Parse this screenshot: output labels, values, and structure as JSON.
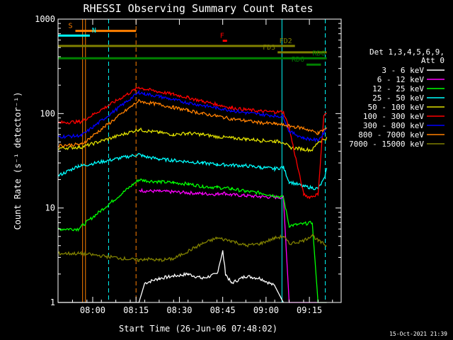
{
  "chart_data": {
    "type": "line",
    "title": "RHESSI Observing Summary Count Rates",
    "xlabel": "Start Time (26-Jun-06 07:48:02)",
    "ylabel": "Count Rate (s⁻¹ detector⁻¹)",
    "yscale": "log",
    "ylim": [
      1,
      1000
    ],
    "xlim_minutes": [
      0,
      98
    ],
    "x_ticks": [
      {
        "label": "08:00",
        "minute": 12
      },
      {
        "label": "08:15",
        "minute": 27
      },
      {
        "label": "08:30",
        "minute": 42
      },
      {
        "label": "08:45",
        "minute": 57
      },
      {
        "label": "09:00",
        "minute": 72
      },
      {
        "label": "09:15",
        "minute": 87
      }
    ],
    "y_ticks": [
      {
        "label": "1",
        "value": 1
      },
      {
        "label": "10",
        "value": 10
      },
      {
        "label": "100",
        "value": 100
      },
      {
        "label": "1000",
        "value": 1000
      }
    ],
    "legend_header": [
      "Det 1,3,4,5,6,9,",
      "Att 0"
    ],
    "legend_position": "right",
    "series": [
      {
        "name": "3 - 6 keV",
        "color": "#ffffff",
        "x": [
          0,
          7,
          8,
          28,
          30,
          35,
          40,
          45,
          50,
          55,
          57,
          58,
          60,
          65,
          70,
          75,
          78
        ],
        "y": [
          1,
          1,
          1,
          1,
          1.6,
          1.8,
          1.9,
          2.0,
          1.8,
          2.0,
          3.5,
          2.0,
          1.6,
          1.9,
          1.8,
          1.5,
          1
        ]
      },
      {
        "name": "6 - 12 keV",
        "color": "#ff00ff",
        "x": [
          28,
          30,
          35,
          40,
          45,
          50,
          55,
          57,
          60,
          65,
          70,
          75,
          78,
          80,
          90,
          92,
          93
        ],
        "y": [
          15.5,
          15.2,
          15,
          14.8,
          14.5,
          14.2,
          14,
          14.5,
          13.8,
          13.5,
          13.2,
          13,
          13,
          1,
          1,
          1,
          1
        ]
      },
      {
        "name": "12 - 25 keV",
        "color": "#00ff00",
        "x": [
          0,
          7,
          28,
          30,
          35,
          40,
          45,
          50,
          55,
          60,
          65,
          70,
          75,
          78,
          80,
          85,
          88,
          90,
          93
        ],
        "y": [
          6,
          6,
          20,
          19.5,
          19,
          18.5,
          18,
          17,
          16.5,
          16,
          15,
          14.5,
          13.5,
          13,
          6.5,
          6.8,
          7,
          1,
          1
        ]
      },
      {
        "name": "25 - 50 keV",
        "color": "#00ffff",
        "x": [
          0,
          4,
          7,
          8,
          28,
          30,
          35,
          40,
          45,
          50,
          55,
          60,
          65,
          70,
          75,
          78,
          80,
          85,
          90,
          92,
          93
        ],
        "y": [
          22,
          25,
          28,
          28,
          37,
          35,
          33,
          32,
          31,
          30,
          29,
          28.5,
          28,
          27,
          26,
          27,
          19,
          17,
          16,
          20,
          26
        ]
      },
      {
        "name": "50 - 100 keV",
        "color": "#dddd00",
        "x": [
          0,
          7,
          8,
          28,
          30,
          35,
          40,
          45,
          50,
          55,
          60,
          65,
          70,
          75,
          78,
          80,
          85,
          88,
          90,
          93
        ],
        "y": [
          43,
          44,
          44,
          68,
          66,
          63,
          60,
          62,
          60,
          57,
          55,
          54,
          52,
          51,
          50,
          44,
          42,
          41,
          50,
          55
        ]
      },
      {
        "name": "100 - 300 keV",
        "color": "#ff0000",
        "x": [
          0,
          7,
          8,
          28,
          30,
          35,
          40,
          45,
          50,
          55,
          60,
          65,
          70,
          75,
          78,
          80,
          85,
          87,
          90,
          92,
          93
        ],
        "y": [
          80,
          82,
          82,
          190,
          182,
          170,
          160,
          148,
          135,
          125,
          115,
          110,
          106,
          104,
          104,
          70,
          14,
          13,
          14,
          95,
          100
        ]
      },
      {
        "name": "300 - 800 keV",
        "color": "#0000ff",
        "x": [
          0,
          7,
          8,
          28,
          30,
          35,
          40,
          45,
          50,
          55,
          60,
          65,
          70,
          75,
          78,
          80,
          85,
          90,
          92,
          93
        ],
        "y": [
          57,
          58,
          58,
          168,
          162,
          152,
          140,
          130,
          122,
          115,
          108,
          102,
          98,
          95,
          93,
          65,
          55,
          52,
          62,
          72
        ]
      },
      {
        "name": "800 - 7000 keV",
        "color": "#ff8000",
        "x": [
          0,
          7,
          8,
          28,
          30,
          35,
          40,
          45,
          50,
          55,
          60,
          65,
          70,
          75,
          78,
          80,
          85,
          90,
          92,
          93
        ],
        "y": [
          46,
          47,
          47,
          137,
          132,
          125,
          116,
          108,
          100,
          94,
          88,
          84,
          80,
          78,
          76,
          74,
          70,
          62,
          67,
          70
        ]
      },
      {
        "name": "7000 - 15000 keV",
        "color": "#808000",
        "x": [
          0,
          7,
          8,
          28,
          30,
          35,
          40,
          45,
          50,
          55,
          60,
          65,
          70,
          75,
          78,
          80,
          85,
          88,
          90,
          93
        ],
        "y": [
          3.3,
          3.3,
          3.3,
          2.8,
          2.9,
          2.8,
          2.9,
          3.5,
          4.2,
          4.8,
          4.5,
          4.0,
          4.2,
          4.8,
          5.0,
          4.2,
          4.5,
          5.2,
          4.5,
          4.0
        ]
      }
    ],
    "flags": [
      {
        "label": "S",
        "color": "#ff8000",
        "start": 6,
        "end": 27,
        "level": 750
      },
      {
        "label": "N",
        "color": "#00ffff",
        "start": 0,
        "end": 11,
        "level": 670
      },
      {
        "label": "F",
        "color": "#ff0000",
        "start": 57,
        "end": 58.5,
        "level": 590
      },
      {
        "label": "FD2",
        "color": "#808000",
        "start": 0,
        "end": 82,
        "level": 520
      },
      {
        "label": "FD3",
        "color": "#808000",
        "start": 76,
        "end": 93,
        "level": 445
      },
      {
        "label": "RD0",
        "color": "#008000",
        "start": 0,
        "end": 93,
        "level": 385
      },
      {
        "label": "RD6",
        "color": "#008000",
        "start": 86,
        "end": 91,
        "level": 330
      }
    ],
    "markers": [
      {
        "minute": 8.5,
        "color": "#ff8000",
        "style": "solid"
      },
      {
        "minute": 9.5,
        "color": "#ff8000",
        "style": "solid"
      },
      {
        "minute": 17.5,
        "color": "#00ffff",
        "style": "dashed"
      },
      {
        "minute": 27,
        "color": "#ff8000",
        "style": "dashed"
      },
      {
        "minute": 77.5,
        "color": "#00ffff",
        "style": "solid"
      },
      {
        "minute": 92.5,
        "color": "#00ffff",
        "style": "dashed"
      }
    ],
    "timestamp": "15-Oct-2021 21:39"
  }
}
